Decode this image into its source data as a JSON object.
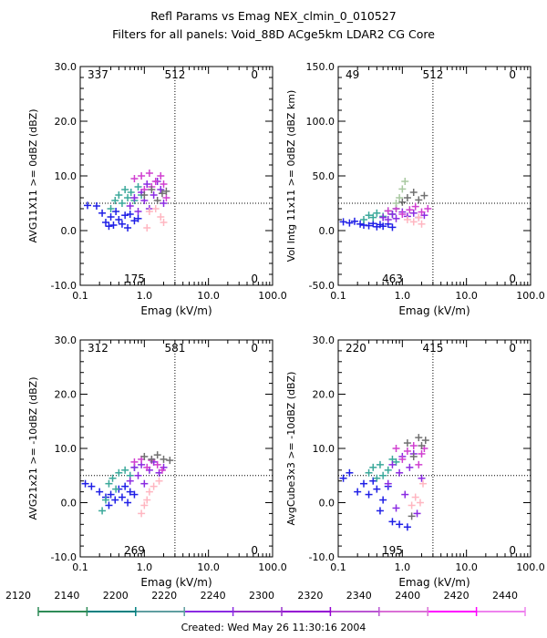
{
  "header": {
    "title": "Refl Params vs Emag    NEX_clmin_0_010527",
    "subtitle": "Filters for all panels:  Void_88D ACge5km LDAR2 CG Core"
  },
  "footer": {
    "created": "Created: Wed May 26 11:30:16 2004"
  },
  "colorbar": {
    "labels": [
      "2120",
      "2140",
      "2200",
      "2220",
      "2240",
      "2300",
      "2320",
      "2340",
      "2400",
      "2420",
      "2440"
    ],
    "colors": [
      "#2e8b57",
      "#008080",
      "#5f9ea0",
      "#8a2be2",
      "#9932cc",
      "#9400d3",
      "#ba55d3",
      "#da70d6",
      "#ff00ff",
      "#ee82ee",
      "#ffb6c1"
    ]
  },
  "chart_data": [
    {
      "type": "scatter",
      "xlabel": "Emag (kV/m)",
      "ylabel": "AVG11X11 >= 0dBZ (dBZ)",
      "xscale": "log",
      "xlim": [
        0.1,
        100.0
      ],
      "ylim": [
        -10.0,
        30.0
      ],
      "xticks": [
        "0.1",
        "1.0",
        "10.0",
        "100.0"
      ],
      "yticks": [
        "-10.0",
        "0.0",
        "10.0",
        "20.0",
        "30.0"
      ],
      "threshold_x": 3.0,
      "threshold_y": 5.0,
      "quadrant_counts": {
        "top_left": "337",
        "top_mid": "512",
        "top_right": "0",
        "bottom_mid": "175",
        "bottom_right": "0"
      },
      "series": [
        {
          "color": "#1f1fe6",
          "points": [
            [
              0.13,
              4.6
            ],
            [
              0.18,
              4.5
            ],
            [
              0.22,
              3.2
            ],
            [
              0.25,
              1.5
            ],
            [
              0.28,
              0.8
            ],
            [
              0.3,
              2.5
            ],
            [
              0.33,
              1.0
            ],
            [
              0.36,
              3.5
            ],
            [
              0.4,
              2.0
            ],
            [
              0.45,
              1.2
            ],
            [
              0.5,
              2.8
            ],
            [
              0.55,
              0.5
            ],
            [
              0.6,
              3.0
            ],
            [
              0.7,
              1.8
            ],
            [
              0.8,
              2.2
            ]
          ]
        },
        {
          "color": "#3aa89a",
          "points": [
            [
              0.3,
              4.0
            ],
            [
              0.35,
              5.5
            ],
            [
              0.4,
              6.5
            ],
            [
              0.45,
              5.0
            ],
            [
              0.5,
              7.5
            ],
            [
              0.55,
              6.0
            ],
            [
              0.62,
              7.0
            ],
            [
              0.7,
              5.5
            ],
            [
              0.8,
              8.0
            ],
            [
              0.9,
              6.5
            ]
          ]
        },
        {
          "color": "#8a2be2",
          "points": [
            [
              0.6,
              4.5
            ],
            [
              0.7,
              6.0
            ],
            [
              0.8,
              3.5
            ],
            [
              0.9,
              7.0
            ],
            [
              1.0,
              5.5
            ],
            [
              1.1,
              8.5
            ],
            [
              1.2,
              4.0
            ],
            [
              1.4,
              6.5
            ],
            [
              1.6,
              9.0
            ],
            [
              1.8,
              7.5
            ],
            [
              2.0,
              5.0
            ]
          ]
        },
        {
          "color": "#d03fd0",
          "points": [
            [
              0.7,
              9.5
            ],
            [
              0.9,
              10.0
            ],
            [
              1.0,
              7.5
            ],
            [
              1.2,
              10.5
            ],
            [
              1.3,
              8.0
            ],
            [
              1.5,
              9.0
            ],
            [
              1.8,
              10.0
            ],
            [
              2.0,
              8.5
            ],
            [
              2.2,
              6.0
            ]
          ]
        },
        {
          "color": "#707070",
          "points": [
            [
              1.0,
              6.5
            ],
            [
              1.3,
              7.5
            ],
            [
              1.6,
              5.5
            ],
            [
              1.9,
              6.8
            ],
            [
              2.2,
              7.2
            ]
          ]
        },
        {
          "color": "#ffb6c1",
          "points": [
            [
              1.2,
              3.5
            ],
            [
              1.5,
              4.0
            ],
            [
              1.8,
              2.5
            ],
            [
              2.0,
              1.5
            ],
            [
              1.1,
              0.5
            ]
          ]
        }
      ]
    },
    {
      "type": "scatter",
      "xlabel": "Emag (kV/m)",
      "ylabel": "Vol Intg 11x11 >= 0dBZ (dBZ km)",
      "xscale": "log",
      "xlim": [
        0.1,
        100.0
      ],
      "ylim": [
        -50.0,
        150.0
      ],
      "xticks": [
        "0.1",
        "1.0",
        "10.0",
        "100.0"
      ],
      "yticks": [
        "-50.0",
        "0.0",
        "50.0",
        "100.0",
        "150.0"
      ],
      "threshold_x": 3.0,
      "threshold_y": 25.0,
      "quadrant_counts": {
        "top_left": "49",
        "top_mid": "512",
        "top_right": "0",
        "bottom_mid": "463",
        "bottom_right": "0"
      },
      "series": [
        {
          "color": "#1f1fe6",
          "points": [
            [
              0.12,
              8.0
            ],
            [
              0.15,
              7.0
            ],
            [
              0.18,
              8.5
            ],
            [
              0.22,
              6.0
            ],
            [
              0.25,
              5.0
            ],
            [
              0.3,
              4.5
            ],
            [
              0.35,
              6.5
            ],
            [
              0.4,
              3.5
            ],
            [
              0.45,
              5.5
            ],
            [
              0.5,
              4.0
            ],
            [
              0.6,
              6.0
            ],
            [
              0.7,
              3.0
            ]
          ]
        },
        {
          "color": "#3aa89a",
          "points": [
            [
              0.25,
              10.0
            ],
            [
              0.3,
              14.0
            ],
            [
              0.35,
              12.0
            ],
            [
              0.4,
              16.0
            ],
            [
              0.5,
              13.0
            ],
            [
              0.6,
              18.0
            ],
            [
              0.7,
              15.0
            ],
            [
              0.8,
              20.0
            ]
          ]
        },
        {
          "color": "#8a2be2",
          "points": [
            [
              0.5,
              12.0
            ],
            [
              0.6,
              10.0
            ],
            [
              0.7,
              15.0
            ],
            [
              0.8,
              11.0
            ],
            [
              1.0,
              17.0
            ],
            [
              1.2,
              13.0
            ],
            [
              1.5,
              16.0
            ],
            [
              1.8,
              12.0
            ],
            [
              2.2,
              14.0
            ]
          ]
        },
        {
          "color": "#d03fd0",
          "points": [
            [
              0.6,
              18.0
            ],
            [
              0.8,
              20.0
            ],
            [
              1.0,
              15.0
            ],
            [
              1.3,
              19.0
            ],
            [
              1.6,
              22.0
            ],
            [
              2.0,
              17.0
            ],
            [
              2.5,
              20.0
            ]
          ]
        },
        {
          "color": "#707070",
          "points": [
            [
              1.2,
              30.0
            ],
            [
              1.5,
              35.0
            ],
            [
              1.8,
              28.0
            ],
            [
              2.2,
              32.0
            ],
            [
              1.0,
              26.0
            ]
          ]
        },
        {
          "color": "#a8c8a0",
          "points": [
            [
              0.8,
              25.0
            ],
            [
              1.0,
              38.0
            ],
            [
              1.1,
              45.0
            ],
            [
              0.9,
              30.0
            ]
          ]
        },
        {
          "color": "#ffb6c1",
          "points": [
            [
              1.2,
              10.0
            ],
            [
              1.5,
              8.0
            ],
            [
              1.8,
              12.0
            ],
            [
              2.0,
              6.0
            ]
          ]
        }
      ]
    },
    {
      "type": "scatter",
      "xlabel": "Emag (kV/m)",
      "ylabel": "AVG21x21 >= -10dBZ (dBZ)",
      "xscale": "log",
      "xlim": [
        0.1,
        100.0
      ],
      "ylim": [
        -10.0,
        30.0
      ],
      "xticks": [
        "0.1",
        "1.0",
        "10.0",
        "100.0"
      ],
      "yticks": [
        "-10.0",
        "0.0",
        "10.0",
        "20.0",
        "30.0"
      ],
      "threshold_x": 3.0,
      "threshold_y": 5.0,
      "quadrant_counts": {
        "top_left": "312",
        "top_mid": "581",
        "top_right": "0",
        "bottom_mid": "269",
        "bottom_right": "0"
      },
      "series": [
        {
          "color": "#1f1fe6",
          "points": [
            [
              0.12,
              3.5
            ],
            [
              0.15,
              3.0
            ],
            [
              0.2,
              2.0
            ],
            [
              0.25,
              1.0
            ],
            [
              0.28,
              -0.5
            ],
            [
              0.3,
              1.5
            ],
            [
              0.35,
              0.5
            ],
            [
              0.4,
              2.5
            ],
            [
              0.45,
              1.0
            ],
            [
              0.5,
              3.0
            ],
            [
              0.55,
              0.0
            ],
            [
              0.6,
              2.0
            ],
            [
              0.7,
              1.5
            ]
          ]
        },
        {
          "color": "#3aa89a",
          "points": [
            [
              0.22,
              -1.5
            ],
            [
              0.25,
              0.5
            ],
            [
              0.28,
              3.5
            ],
            [
              0.32,
              4.5
            ],
            [
              0.36,
              2.5
            ],
            [
              0.4,
              5.5
            ],
            [
              0.5,
              6.0
            ],
            [
              0.6,
              5.0
            ],
            [
              0.7,
              6.5
            ]
          ]
        },
        {
          "color": "#8a2be2",
          "points": [
            [
              0.6,
              4.0
            ],
            [
              0.7,
              6.5
            ],
            [
              0.8,
              5.0
            ],
            [
              0.9,
              7.0
            ],
            [
              1.0,
              3.5
            ],
            [
              1.2,
              6.0
            ],
            [
              1.4,
              7.5
            ],
            [
              1.7,
              5.5
            ],
            [
              2.0,
              6.5
            ]
          ]
        },
        {
          "color": "#d03fd0",
          "points": [
            [
              0.7,
              7.5
            ],
            [
              0.9,
              8.0
            ],
            [
              1.1,
              6.5
            ],
            [
              1.3,
              7.8
            ],
            [
              1.6,
              7.0
            ],
            [
              1.9,
              6.0
            ]
          ]
        },
        {
          "color": "#707070",
          "points": [
            [
              1.0,
              8.5
            ],
            [
              1.3,
              8.0
            ],
            [
              1.6,
              8.8
            ],
            [
              2.0,
              8.0
            ],
            [
              2.5,
              7.8
            ]
          ]
        },
        {
          "color": "#ffb6c1",
          "points": [
            [
              0.9,
              -2.0
            ],
            [
              1.0,
              -0.5
            ],
            [
              1.1,
              0.5
            ],
            [
              1.2,
              2.0
            ],
            [
              1.4,
              3.0
            ],
            [
              1.7,
              4.0
            ]
          ]
        }
      ]
    },
    {
      "type": "scatter",
      "xlabel": "Emag (kV/m)",
      "ylabel": "AvgCube3x3 >= -10dBZ (dBZ)",
      "xscale": "log",
      "xlim": [
        0.1,
        100.0
      ],
      "ylim": [
        -10.0,
        30.0
      ],
      "xticks": [
        "0.1",
        "1.0",
        "10.0",
        "100.0"
      ],
      "yticks": [
        "-10.0",
        "0.0",
        "10.0",
        "20.0",
        "30.0"
      ],
      "threshold_x": 3.0,
      "threshold_y": 5.0,
      "quadrant_counts": {
        "top_left": "220",
        "top_mid": "415",
        "top_right": "0",
        "bottom_mid": "195",
        "bottom_right": "0"
      },
      "series": [
        {
          "color": "#1f1fe6",
          "points": [
            [
              0.12,
              4.5
            ],
            [
              0.15,
              5.5
            ],
            [
              0.2,
              2.0
            ],
            [
              0.25,
              3.5
            ],
            [
              0.3,
              1.5
            ],
            [
              0.35,
              4.0
            ],
            [
              0.4,
              2.5
            ],
            [
              0.45,
              -1.5
            ],
            [
              0.5,
              0.5
            ],
            [
              0.6,
              3.0
            ],
            [
              0.7,
              -3.5
            ],
            [
              0.9,
              -4.0
            ],
            [
              1.2,
              -4.5
            ]
          ]
        },
        {
          "color": "#3aa89a",
          "points": [
            [
              0.3,
              5.5
            ],
            [
              0.35,
              6.5
            ],
            [
              0.4,
              4.5
            ],
            [
              0.45,
              7.0
            ],
            [
              0.5,
              5.0
            ],
            [
              0.6,
              6.0
            ],
            [
              0.7,
              8.0
            ],
            [
              0.8,
              7.5
            ]
          ]
        },
        {
          "color": "#8a2be2",
          "points": [
            [
              0.6,
              3.5
            ],
            [
              0.7,
              7.0
            ],
            [
              0.8,
              -1.0
            ],
            [
              0.9,
              5.5
            ],
            [
              1.0,
              8.5
            ],
            [
              1.1,
              1.5
            ],
            [
              1.3,
              6.5
            ],
            [
              1.5,
              9.0
            ],
            [
              1.7,
              -2.0
            ],
            [
              2.0,
              4.5
            ]
          ]
        },
        {
          "color": "#d03fd0",
          "points": [
            [
              0.8,
              10.0
            ],
            [
              1.0,
              8.0
            ],
            [
              1.2,
              9.5
            ],
            [
              1.5,
              10.5
            ],
            [
              1.8,
              7.0
            ],
            [
              2.0,
              9.0
            ],
            [
              2.2,
              10.0
            ]
          ]
        },
        {
          "color": "#707070",
          "points": [
            [
              1.2,
              11.0
            ],
            [
              1.5,
              8.5
            ],
            [
              1.8,
              12.0
            ],
            [
              2.0,
              10.5
            ],
            [
              2.3,
              11.5
            ],
            [
              1.4,
              -2.5
            ]
          ]
        },
        {
          "color": "#ffb6c1",
          "points": [
            [
              1.4,
              -0.5
            ],
            [
              1.6,
              1.0
            ],
            [
              1.9,
              0.0
            ],
            [
              2.1,
              3.5
            ]
          ]
        }
      ]
    }
  ]
}
